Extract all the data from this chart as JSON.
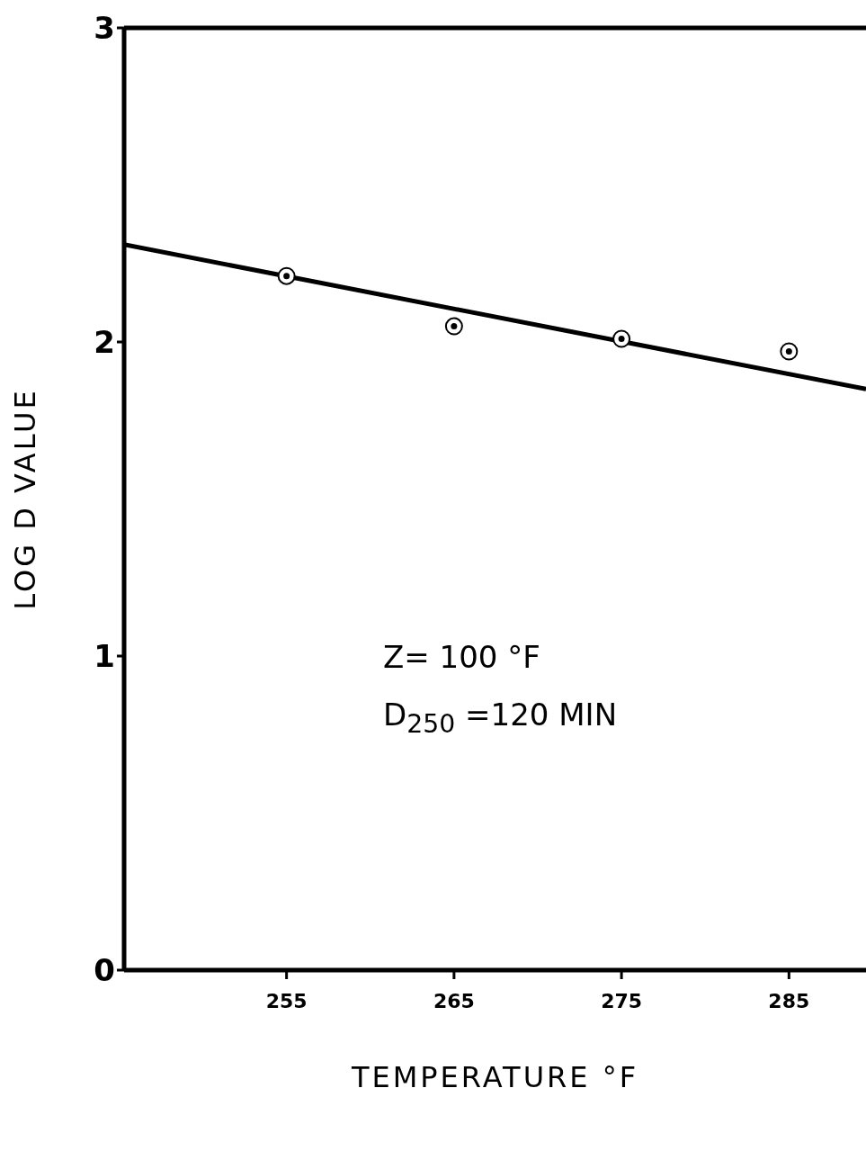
{
  "chart_data": {
    "type": "scatter",
    "xlabel": "TEMPERATURE °F",
    "ylabel": "LOG D VALUE",
    "xlim": [
      245.3,
      289.6
    ],
    "xticks": [
      255,
      265,
      275,
      285
    ],
    "ylim": [
      0,
      3
    ],
    "yticks": [
      0,
      1,
      2,
      3
    ],
    "grid": false,
    "legend": false,
    "marker": "circle",
    "series": [
      {
        "color": "#000000",
        "x": [
          255,
          265,
          275,
          285
        ],
        "values": [
          2.21,
          2.05,
          2.01,
          1.97
        ]
      },
      {
        "type": "line",
        "color": "#000000",
        "x": [
          245.3,
          289.6
        ],
        "values": [
          2.31,
          1.85
        ],
        "marker": "none",
        "line_style": "solid"
      }
    ],
    "annotations": [
      "Z= 100 °F",
      "D$_{250}$ =120 MIN"
    ]
  }
}
